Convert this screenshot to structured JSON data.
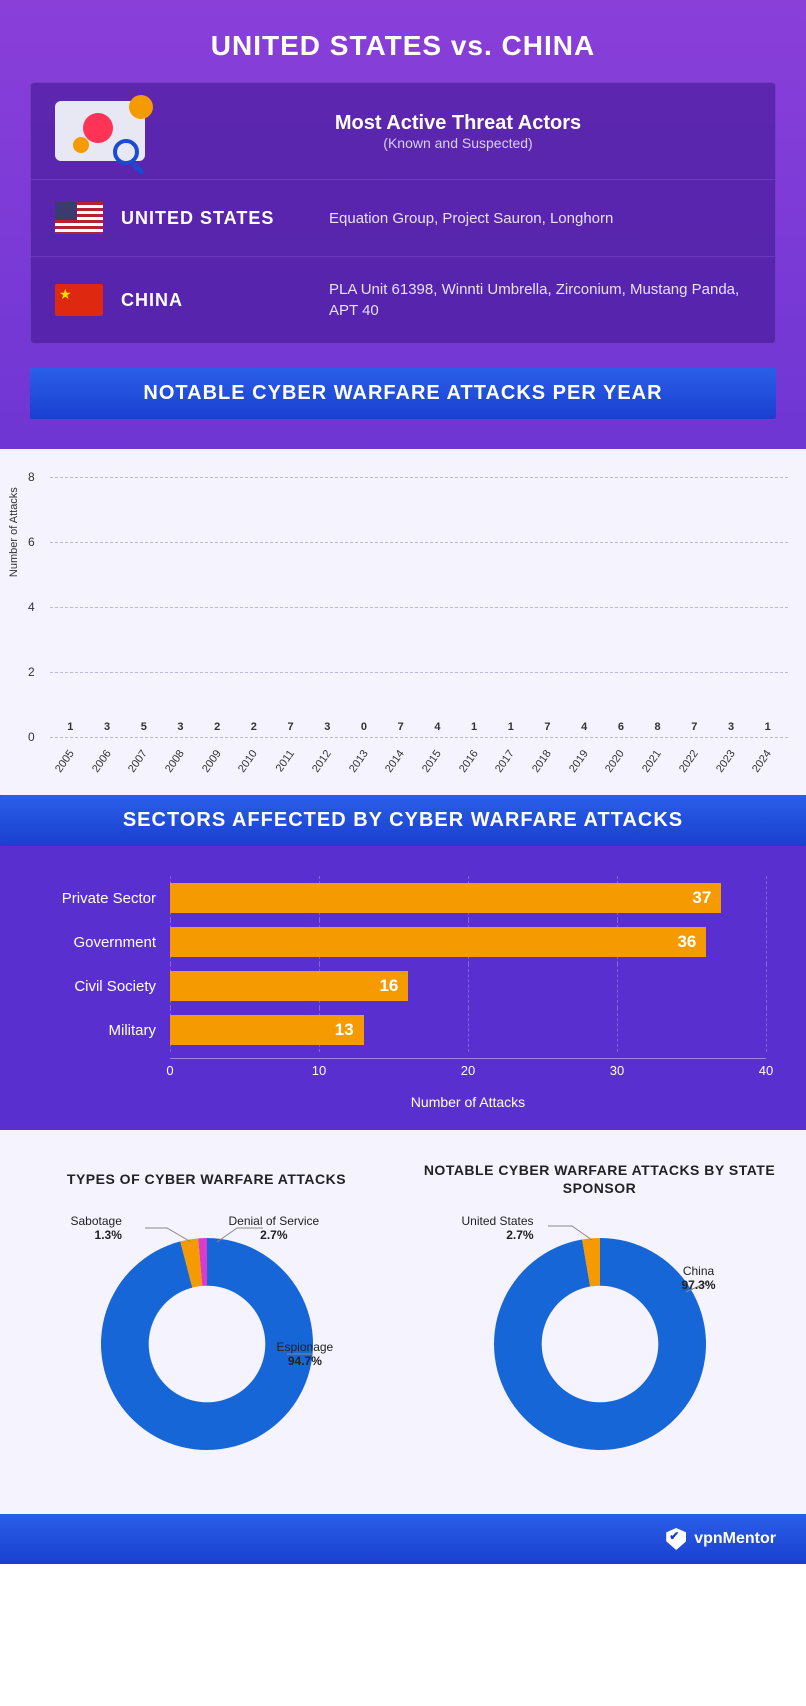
{
  "main_title": "UNITED STATES vs. CHINA",
  "threat": {
    "title": "Most Active Threat Actors",
    "subtitle": "(Known and Suspected)",
    "rows": [
      {
        "country": "UNITED STATES",
        "flag": "us",
        "actors": "Equation Group, Project Sauron, Longhorn"
      },
      {
        "country": "CHINA",
        "flag": "cn",
        "actors": "PLA Unit 61398, Winnti Umbrella, Zirconium, Mustang Panda, APT 40"
      }
    ]
  },
  "vbar": {
    "banner": "NOTABLE CYBER WARFARE ATTACKS PER YEAR",
    "ylabel": "Number of Attacks",
    "ymax": 8,
    "ytick_step": 2,
    "bar_color": "#6b42d6",
    "grid_color": "#bbb8d8",
    "bg_color": "#f5f3fe",
    "years": [
      "2005",
      "2006",
      "2007",
      "2008",
      "2009",
      "2010",
      "2011",
      "2012",
      "2013",
      "2014",
      "2015",
      "2016",
      "2017",
      "2018",
      "2019",
      "2020",
      "2021",
      "2022",
      "2023",
      "2024"
    ],
    "values": [
      1,
      3,
      5,
      3,
      2,
      2,
      7,
      3,
      0,
      7,
      4,
      1,
      1,
      7,
      4,
      6,
      8,
      7,
      3,
      1
    ]
  },
  "hbar": {
    "banner": "SECTORS AFFECTED BY CYBER WARFARE ATTACKS",
    "xlabel": "Number of Attacks",
    "xmax": 40,
    "xtick_step": 10,
    "bar_color": "#f59a00",
    "bg_color": "#5a2fd0",
    "rows": [
      {
        "label": "Private Sector",
        "value": 37
      },
      {
        "label": "Government",
        "value": 36
      },
      {
        "label": "Civil Society",
        "value": 16
      },
      {
        "label": "Military",
        "value": 13
      }
    ]
  },
  "donuts": {
    "bg_color": "#f5f3fe",
    "left": {
      "title": "TYPES OF CYBER WARFARE ATTACKS",
      "slices": [
        {
          "label": "Espionage",
          "pct": 94.7,
          "color": "#1766d8"
        },
        {
          "label": "Denial of Service",
          "pct": 2.7,
          "color": "#f59a00"
        },
        {
          "label": "Sabotage",
          "pct": 1.3,
          "color": "#d93cc8"
        }
      ],
      "inner_ratio": 0.55
    },
    "right": {
      "title": "NOTABLE CYBER WARFARE ATTACKS BY STATE SPONSOR",
      "slices": [
        {
          "label": "China",
          "pct": 97.3,
          "color": "#1766d8"
        },
        {
          "label": "United States",
          "pct": 2.7,
          "color": "#f59a00"
        }
      ],
      "inner_ratio": 0.55
    }
  },
  "footer": {
    "brand": "vpnMentor"
  }
}
